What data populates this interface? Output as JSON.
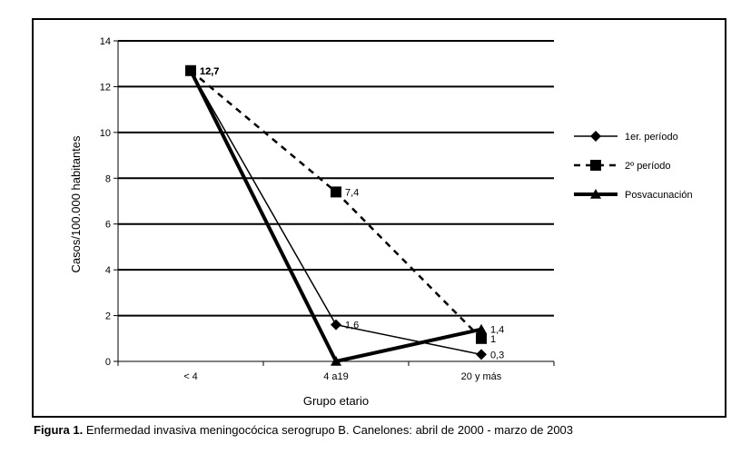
{
  "figure": {
    "caption_label": "Figura 1.",
    "caption_text": "Enfermedad invasiva meningocócica serogrupo B. Canelones: abril de 2000 - marzo de 2003"
  },
  "chart_data": {
    "type": "line",
    "categories": [
      "< 4",
      "4 a19",
      "20 y más"
    ],
    "xlabel": "Grupo etario",
    "ylabel": "Casos/100.000 habitantes",
    "ylim": [
      0,
      14
    ],
    "yticks": [
      0,
      2,
      4,
      6,
      8,
      10,
      12,
      14
    ],
    "grid": true,
    "legend_position": "right",
    "series": [
      {
        "name": "1er. período",
        "values": [
          12.7,
          1.6,
          0.3
        ],
        "data_labels": [
          "12,7",
          "1,6",
          "0,3"
        ],
        "marker": "diamond",
        "line_style": "solid-thin",
        "color": "#000000"
      },
      {
        "name": "2º período",
        "values": [
          12.7,
          7.4,
          1
        ],
        "data_labels": [
          "12,7",
          "7,4",
          "1"
        ],
        "marker": "square",
        "line_style": "dashed",
        "color": "#000000"
      },
      {
        "name": "Posvacunación",
        "values": [
          12.7,
          0,
          1.4
        ],
        "data_labels": [
          "",
          "",
          "1,4"
        ],
        "marker": "triangle",
        "line_style": "solid-thick",
        "color": "#000000"
      }
    ]
  }
}
